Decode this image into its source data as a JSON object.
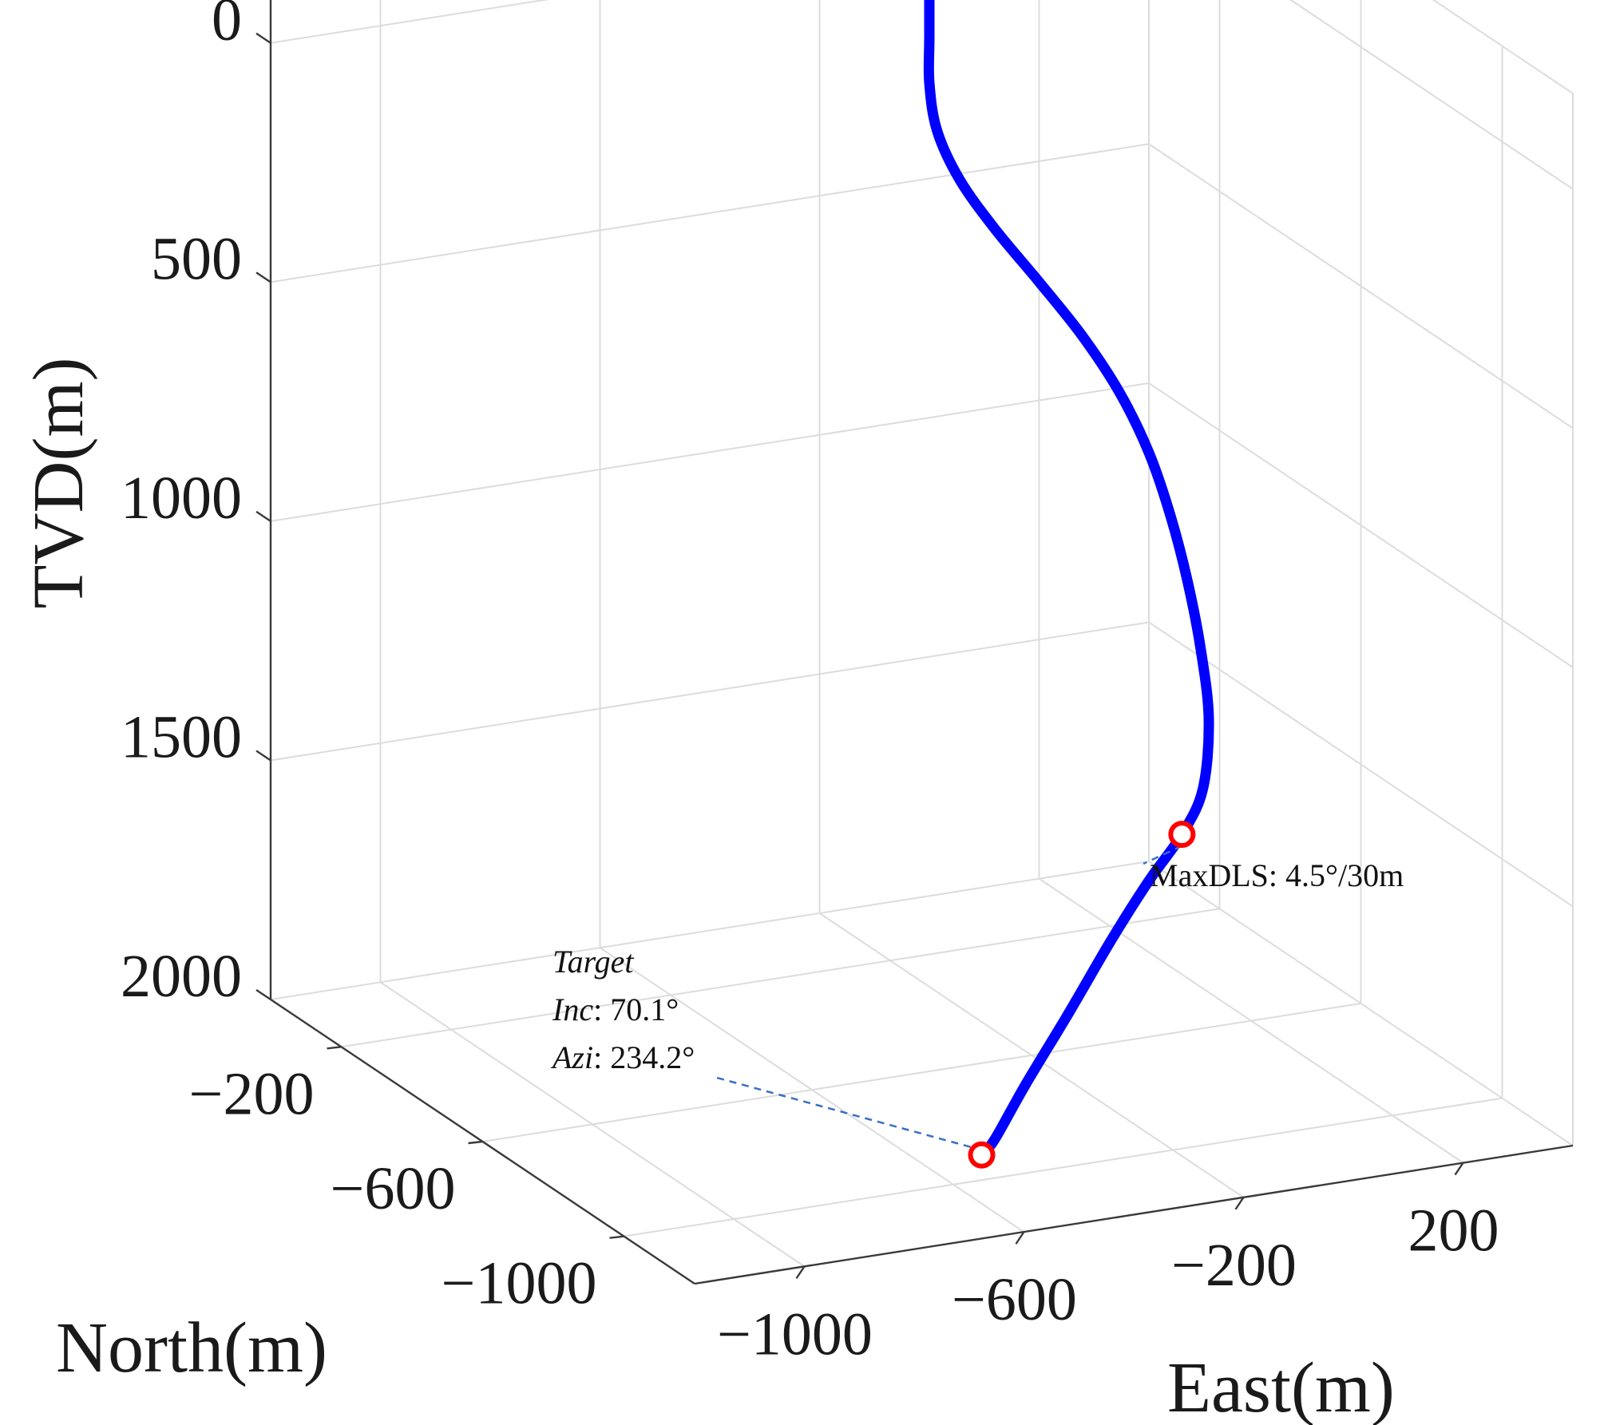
{
  "chart_data": {
    "type": "line3d",
    "title": "",
    "xlabel": "East(m)",
    "ylabel": "North(m)",
    "zlabel": "TVD(m)",
    "xlim": [
      -1200,
      400
    ],
    "ylim": [
      -1200,
      0
    ],
    "zlim": [
      -200,
      2000
    ],
    "x_ticks": [
      {
        "value": -1000,
        "label": "−1000"
      },
      {
        "value": -600,
        "label": "−600"
      },
      {
        "value": -200,
        "label": "−200"
      },
      {
        "value": 200,
        "label": "200"
      }
    ],
    "y_ticks": [
      {
        "value": -200,
        "label": "−200"
      },
      {
        "value": -600,
        "label": "−600"
      },
      {
        "value": -1000,
        "label": "−1000"
      }
    ],
    "z_ticks": [
      {
        "value": 0,
        "label": "0"
      },
      {
        "value": 500,
        "label": "500"
      },
      {
        "value": 1000,
        "label": "1000"
      },
      {
        "value": 1500,
        "label": "1500"
      },
      {
        "value": 2000,
        "label": "2000"
      }
    ],
    "grid": true,
    "series": [
      {
        "color": "#0000ff",
        "points": [
          {
            "east": 0,
            "north": 0,
            "tvd": -200
          },
          {
            "east": 0,
            "north": 0,
            "tvd": 0
          },
          {
            "east": 0,
            "north": 0,
            "tvd": 200
          },
          {
            "east": 0,
            "north": 0,
            "tvd": 300
          },
          {
            "east": 11,
            "north": -5,
            "tvd": 400
          },
          {
            "east": 42,
            "north": -21,
            "tvd": 500
          },
          {
            "east": 90,
            "north": -48,
            "tvd": 600
          },
          {
            "east": 145,
            "north": -85,
            "tvd": 700
          },
          {
            "east": 195,
            "north": -130,
            "tvd": 800
          },
          {
            "east": 230,
            "north": -182,
            "tvd": 900
          },
          {
            "east": 246,
            "north": -240,
            "tvd": 1000
          },
          {
            "east": 244,
            "north": -304,
            "tvd": 1100
          },
          {
            "east": 230,
            "north": -374,
            "tvd": 1200
          },
          {
            "east": 205,
            "north": -450,
            "tvd": 1300
          },
          {
            "east": 168,
            "north": -530,
            "tvd": 1400
          },
          {
            "east": 112,
            "north": -600,
            "tvd": 1500
          },
          {
            "east": 45,
            "north": -645,
            "tvd": 1560
          },
          {
            "east": -45,
            "north": -690,
            "tvd": 1620
          },
          {
            "east": -145,
            "north": -740,
            "tvd": 1700
          },
          {
            "east": -260,
            "north": -800,
            "tvd": 1800
          },
          {
            "east": -380,
            "north": -862,
            "tvd": 1900
          },
          {
            "east": -460,
            "north": -900,
            "tvd": 1980
          },
          {
            "east": -493,
            "north": -914,
            "tvd": 2000
          }
        ]
      }
    ],
    "markers": [
      {
        "east": 45,
        "north": -645,
        "tvd": 1560,
        "edge_color": "#ff0000",
        "fill": "#ffffff"
      },
      {
        "east": -493,
        "north": -914,
        "tvd": 2000,
        "edge_color": "#ff0000",
        "fill": "#ffffff"
      }
    ],
    "annotations": {
      "max_dls": {
        "text": "MaxDLS: 4.5°/30m"
      },
      "target": {
        "line1": "Target",
        "inc_label": "Inc",
        "inc_value": ": 70.1°",
        "azi_label": "Azi",
        "azi_value": ": 234.2°"
      }
    },
    "colors": {
      "trajectory": "#0000ff",
      "marker_edge": "#ff0000",
      "leader": "#3a6fc4"
    }
  }
}
